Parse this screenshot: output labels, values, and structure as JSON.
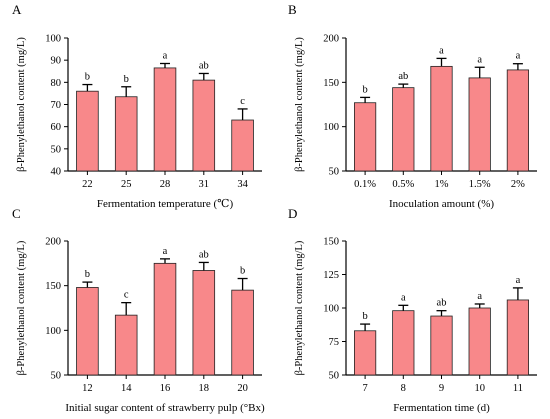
{
  "figure": {
    "colors": {
      "bar_fill": "#f8888a",
      "bar_stroke": "#222222",
      "axis": "#000000"
    }
  },
  "chart_data": [
    {
      "panel": "A",
      "type": "bar",
      "categories": [
        "22",
        "25",
        "28",
        "31",
        "34"
      ],
      "values": [
        76,
        73.5,
        86.5,
        81,
        63
      ],
      "errors": [
        3,
        4.5,
        2,
        3,
        5
      ],
      "sig_letters": [
        "b",
        "b",
        "a",
        "ab",
        "c"
      ],
      "xlabel": "Fermentation temperature (℃)",
      "ylabel": "β-Phenylethanol content (mg/L)",
      "ylim": [
        40,
        100
      ],
      "yticks": [
        "40",
        "50",
        "60",
        "70",
        "80",
        "90",
        "100"
      ]
    },
    {
      "panel": "B",
      "type": "bar",
      "categories": [
        "0.1%",
        "0.5%",
        "1%",
        "1.5%",
        "2%"
      ],
      "values": [
        127,
        144,
        168,
        155,
        164
      ],
      "errors": [
        6,
        4,
        9,
        12,
        7
      ],
      "sig_letters": [
        "b",
        "ab",
        "a",
        "a",
        "a"
      ],
      "xlabel": "Inoculation amount (%)",
      "ylabel": "β-Phenylethanol content (mg/L)",
      "ylim": [
        50,
        200
      ],
      "yticks": [
        "50",
        "100",
        "150",
        "200"
      ]
    },
    {
      "panel": "C",
      "type": "bar",
      "categories": [
        "12",
        "14",
        "16",
        "18",
        "20"
      ],
      "values": [
        148,
        117,
        175,
        167,
        145
      ],
      "errors": [
        6,
        14,
        5,
        9,
        13
      ],
      "sig_letters": [
        "b",
        "c",
        "a",
        "ab",
        "b"
      ],
      "xlabel": "Initial sugar content of strawberry pulp (°Bx)",
      "ylabel": "β-Phenylethanol content (mg/L)",
      "ylim": [
        50,
        200
      ],
      "yticks": [
        "50",
        "100",
        "150",
        "200"
      ]
    },
    {
      "panel": "D",
      "type": "bar",
      "categories": [
        "7",
        "8",
        "9",
        "10",
        "11"
      ],
      "values": [
        83,
        98,
        94,
        100,
        106
      ],
      "errors": [
        5,
        4,
        4,
        3,
        9
      ],
      "sig_letters": [
        "b",
        "a",
        "ab",
        "a",
        "a"
      ],
      "xlabel": "Fermentation time (d)",
      "ylabel": "β-Phenylethanol content (mg/L)",
      "ylim": [
        50,
        150
      ],
      "yticks": [
        "50",
        "75",
        "100",
        "125",
        "150"
      ]
    }
  ]
}
